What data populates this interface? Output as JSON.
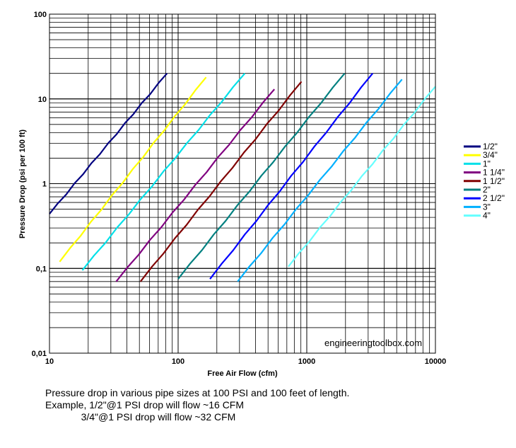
{
  "chart_data": {
    "type": "line",
    "x_scale": "log",
    "y_scale": "log",
    "xlim": [
      10,
      10000
    ],
    "ylim": [
      0.01,
      100
    ],
    "grid": true,
    "legend_position": "right",
    "xlabel": "Free Air Flow (cfm)",
    "ylabel": "Pressure Drop (psi per 100 ft)",
    "x_ticks": [
      {
        "value": 10,
        "label": "10"
      },
      {
        "value": 100,
        "label": "100"
      },
      {
        "value": 1000,
        "label": "1000"
      },
      {
        "value": 10000,
        "label": "10000"
      }
    ],
    "y_ticks": [
      {
        "value": 0.01,
        "label": "0,01"
      },
      {
        "value": 0.1,
        "label": "0,1"
      },
      {
        "value": 1,
        "label": "1"
      },
      {
        "value": 10,
        "label": "10"
      },
      {
        "value": 100,
        "label": "100"
      }
    ],
    "series": [
      {
        "name": "1/2\"",
        "color": "#000080",
        "x_range": [
          10,
          82
        ],
        "y_range": [
          0.44,
          20
        ]
      },
      {
        "name": "3/4\"",
        "color": "#ffff00",
        "x_range": [
          12,
          165
        ],
        "y_range": [
          0.12,
          18
        ]
      },
      {
        "name": "1\"",
        "color": "#00e0e8",
        "x_range": [
          18,
          330
        ],
        "y_range": [
          0.095,
          20
        ]
      },
      {
        "name": "1 1/4\"",
        "color": "#800080",
        "x_range": [
          33,
          560
        ],
        "y_range": [
          0.07,
          13
        ]
      },
      {
        "name": "1 1/2\"",
        "color": "#800000",
        "x_range": [
          51,
          910
        ],
        "y_range": [
          0.07,
          16
        ]
      },
      {
        "name": "2\"",
        "color": "#008080",
        "x_range": [
          100,
          1970
        ],
        "y_range": [
          0.075,
          20
        ]
      },
      {
        "name": "2 1/2\"",
        "color": "#0000ff",
        "x_range": [
          177,
          3250
        ],
        "y_range": [
          0.075,
          20
        ]
      },
      {
        "name": "3\"",
        "color": "#00b0ff",
        "x_range": [
          290,
          5500
        ],
        "y_range": [
          0.07,
          17
        ]
      },
      {
        "name": "4\"",
        "color": "#66ffff",
        "x_range": [
          720,
          10000
        ],
        "y_range": [
          0.105,
          14
        ]
      }
    ],
    "annotation": "engineeringtoolbox.com"
  },
  "caption": {
    "line1": "Pressure drop in various pipe sizes at 100 PSI and 100 feet of length.",
    "line2": "Example, 1/2\"@1 PSI drop will flow ~16 CFM",
    "line3": "             3/4\"@1 PSI drop will flow ~32 CFM"
  }
}
